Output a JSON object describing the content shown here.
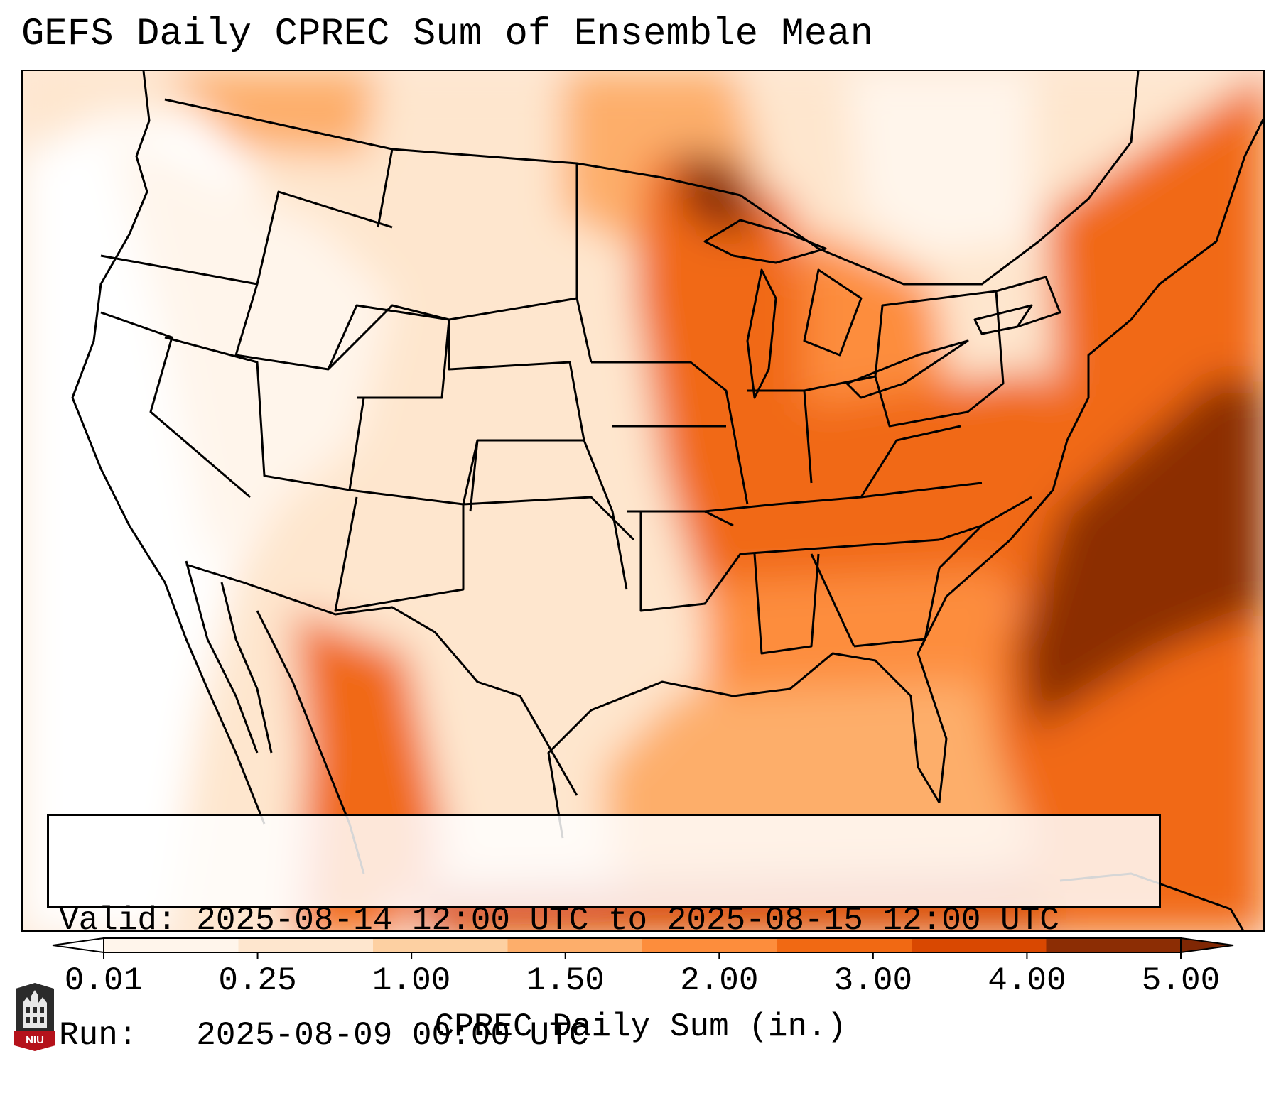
{
  "title": "GEFS Daily CPREC Sum of Ensemble Mean",
  "info": {
    "valid_label": "Valid:",
    "valid_value": "2025-08-14 12:00 UTC to 2025-08-15 12:00 UTC",
    "run_label": "Run:",
    "run_value": "2025-08-09 00:00 UTC"
  },
  "colorbar": {
    "label": "CPREC Daily Sum (in.)",
    "ticks": [
      "0.01",
      "0.25",
      "1.00",
      "1.50",
      "2.00",
      "3.00",
      "4.00",
      "5.00"
    ],
    "colors": [
      "#fff5eb",
      "#fee6ce",
      "#fdd0a2",
      "#fdae6b",
      "#fd8d3c",
      "#f16913",
      "#d94801",
      "#8c2d04"
    ],
    "under_color": "#ffffff",
    "over_color": "#7f2704"
  },
  "logo": {
    "text": "NIU",
    "color": "#b5121b"
  },
  "map": {
    "colors": {
      "c0": "#ffffff",
      "c1": "#fff5eb",
      "c2": "#fee6ce",
      "c3": "#fdd0a2",
      "c4": "#fdae6b",
      "c5": "#fd8d3c",
      "c6": "#f16913",
      "c7": "#d94801",
      "c8": "#8c2d04"
    }
  }
}
